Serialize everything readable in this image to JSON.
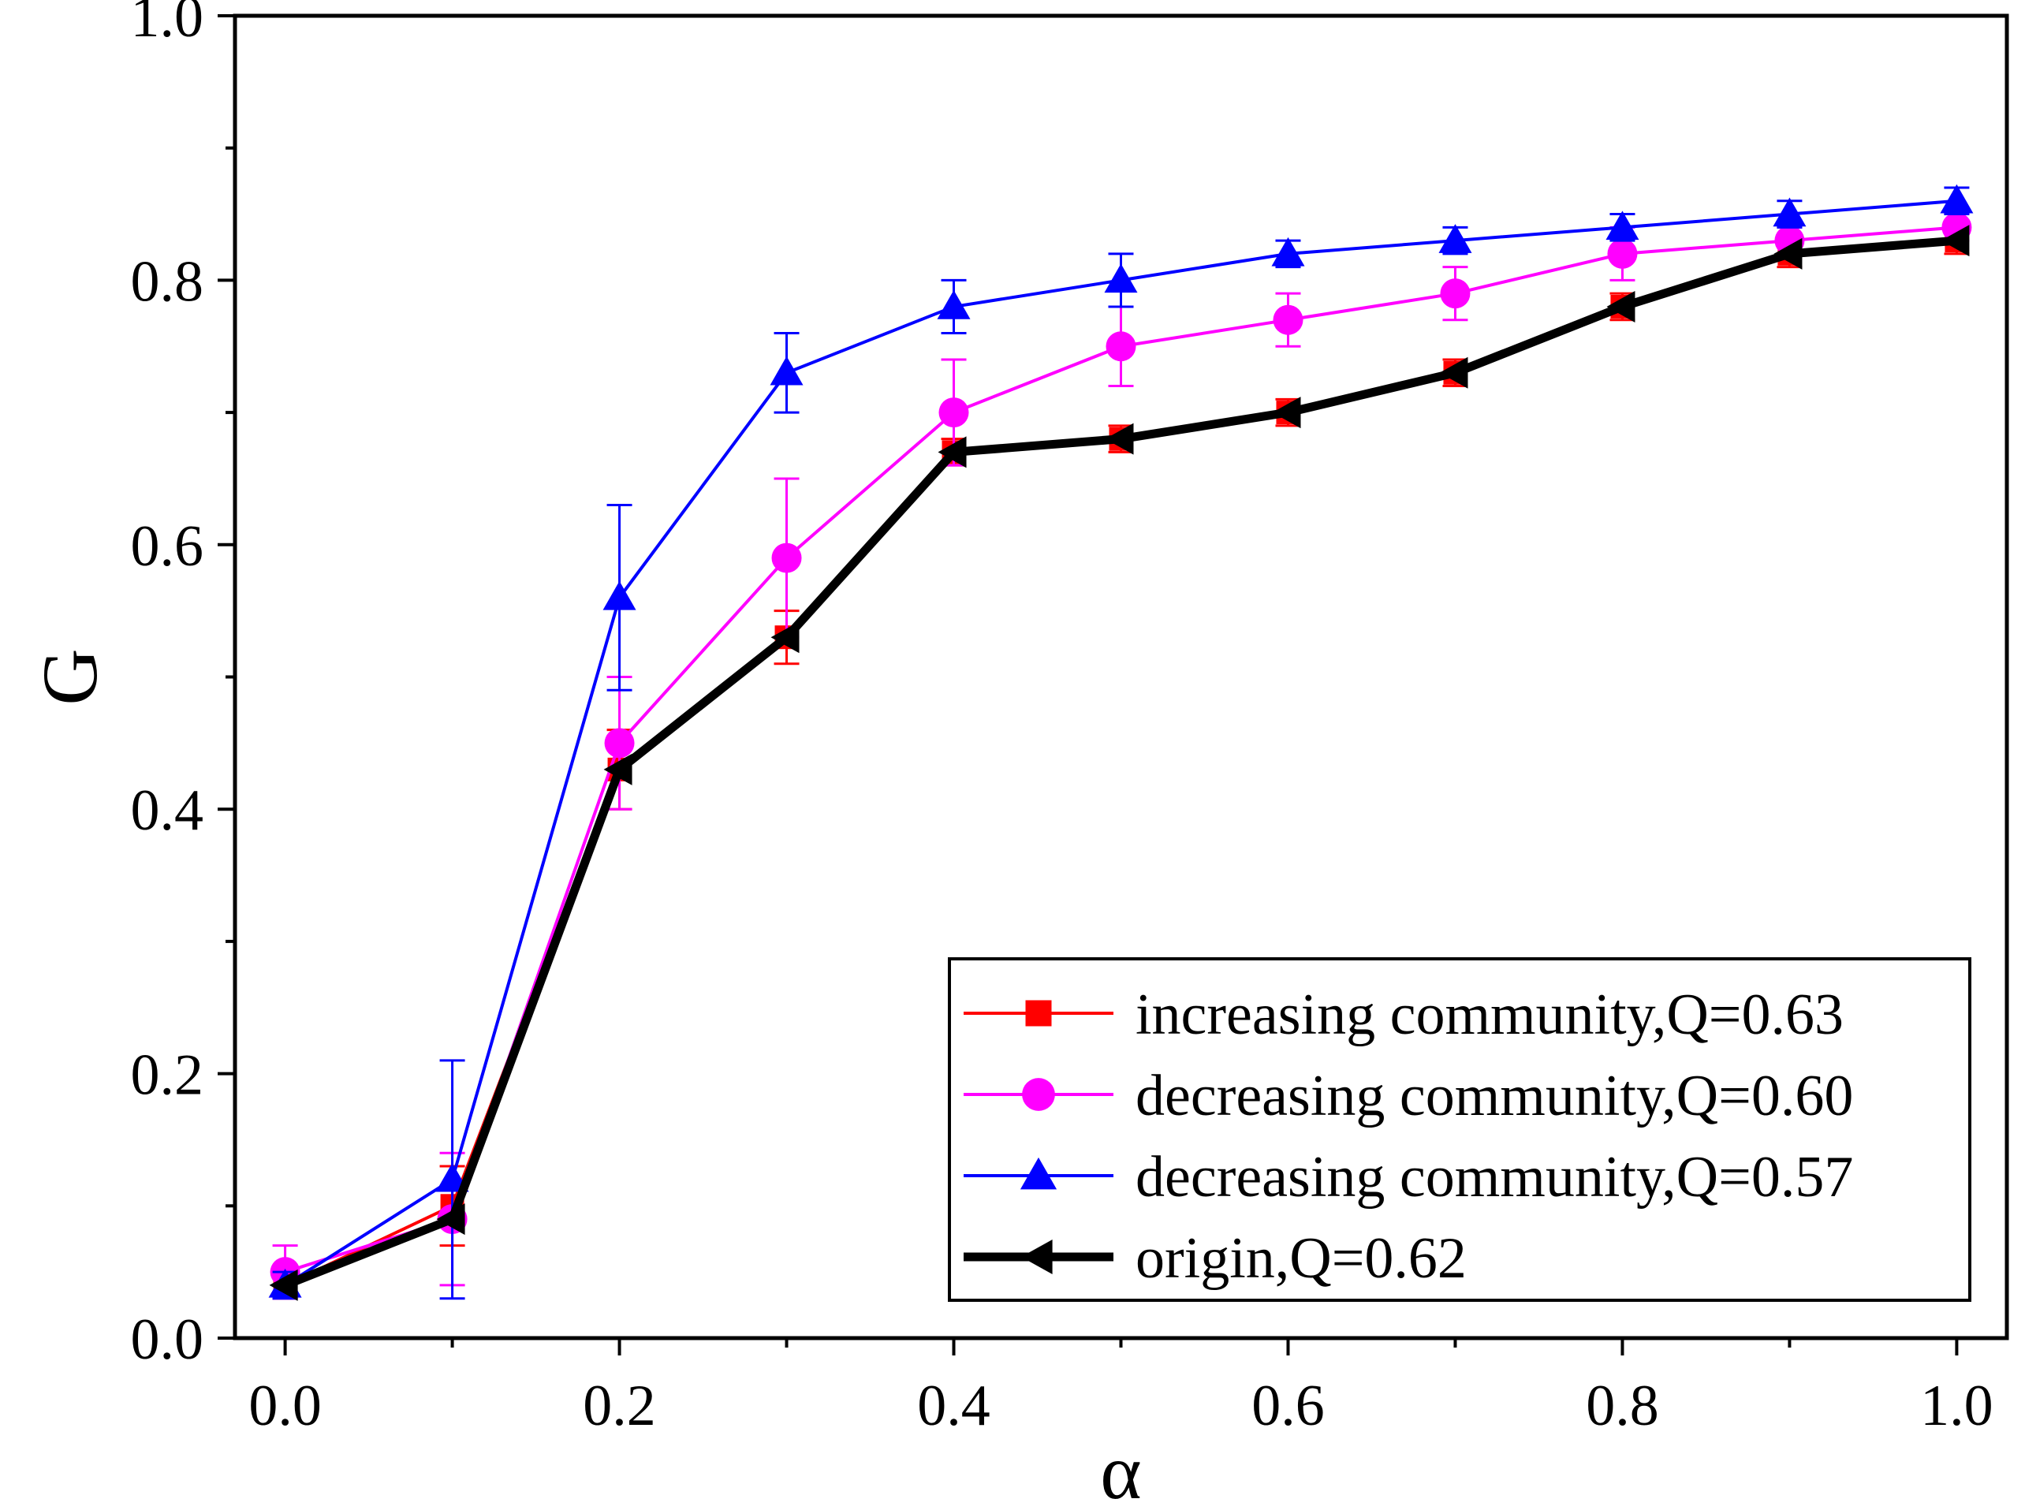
{
  "chart_data": {
    "type": "line",
    "title": "",
    "xlabel": "α",
    "ylabel": "G",
    "xlim": [
      -0.03,
      1.03
    ],
    "ylim": [
      0.0,
      1.0
    ],
    "x_ticks": [
      "0.0",
      "0.2",
      "0.4",
      "0.6",
      "0.8",
      "1.0"
    ],
    "y_ticks": [
      "0.0",
      "0.2",
      "0.4",
      "0.6",
      "0.8",
      "1.0"
    ],
    "grid": false,
    "legend_position": "bottom-right",
    "x": [
      0.0,
      0.1,
      0.2,
      0.3,
      0.4,
      0.5,
      0.6,
      0.7,
      0.8,
      0.9,
      1.0
    ],
    "series": [
      {
        "name": "increasing community,Q=0.63",
        "color": "#ff0000",
        "marker": "square",
        "values": [
          0.04,
          0.1,
          0.43,
          0.53,
          0.67,
          0.68,
          0.7,
          0.73,
          0.78,
          0.82,
          0.83
        ],
        "error": [
          0.01,
          0.03,
          0.03,
          0.02,
          0.01,
          0.01,
          0.01,
          0.01,
          0.01,
          0.01,
          0.01
        ]
      },
      {
        "name": "decreasing community,Q=0.60",
        "color": "#ff00ff",
        "marker": "circle",
        "values": [
          0.05,
          0.09,
          0.45,
          0.59,
          0.7,
          0.75,
          0.77,
          0.79,
          0.82,
          0.83,
          0.84
        ],
        "error": [
          0.02,
          0.05,
          0.05,
          0.06,
          0.04,
          0.03,
          0.02,
          0.02,
          0.02,
          0.01,
          0.01
        ]
      },
      {
        "name": "decreasing community,Q=0.57",
        "color": "#0000ff",
        "marker": "triangle-up",
        "values": [
          0.04,
          0.12,
          0.56,
          0.73,
          0.78,
          0.8,
          0.82,
          0.83,
          0.84,
          0.85,
          0.86
        ],
        "error": [
          0.01,
          0.09,
          0.07,
          0.03,
          0.02,
          0.02,
          0.01,
          0.01,
          0.01,
          0.01,
          0.01
        ]
      },
      {
        "name": "origin,Q=0.62",
        "color": "#000000",
        "marker": "triangle-left",
        "values": [
          0.04,
          0.09,
          0.43,
          0.53,
          0.67,
          0.68,
          0.7,
          0.73,
          0.78,
          0.82,
          0.83
        ],
        "error": []
      }
    ]
  }
}
